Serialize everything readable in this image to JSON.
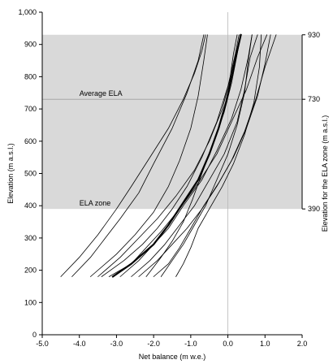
{
  "chart_data": {
    "type": "line",
    "xlabel": "Net balance (m w.e.)",
    "ylabel": "Elevation (m a.s.l.)",
    "y2label": "Elevation for the ELA zone (m a.s.l.)",
    "xlim": [
      -5.0,
      2.0
    ],
    "ylim": [
      0,
      1000
    ],
    "x_ticks": [
      "-5.0",
      "-4.0",
      "-3.0",
      "-2.0",
      "-1.0",
      "0.0",
      "1.0",
      "2.0"
    ],
    "y_ticks": [
      "0",
      "100",
      "200",
      "300",
      "400",
      "500",
      "600",
      "700",
      "800",
      "900",
      "1,000"
    ],
    "y2_ticks": [
      {
        "value": 390,
        "label": "390"
      },
      {
        "value": 730,
        "label": "730"
      },
      {
        "value": 930,
        "label": "930"
      }
    ],
    "ela_zone": {
      "min": 390,
      "max": 930,
      "label": "ELA zone",
      "fill": "#d9d9d9"
    },
    "average_ela": {
      "value": 730,
      "label": "Average ELA"
    },
    "zero_line": 0.0,
    "series": [
      {
        "bold": true,
        "x": [
          -3.1,
          -2.6,
          -2.0,
          -1.6,
          -1.2,
          -0.8,
          -0.5,
          -0.25,
          -0.05,
          0.1,
          0.25,
          0.35
        ],
        "y": [
          180,
          220,
          280,
          340,
          410,
          480,
          560,
          640,
          720,
          800,
          880,
          930
        ]
      },
      {
        "bold": false,
        "x": [
          -4.5,
          -4.0,
          -3.5,
          -3.0,
          -2.6,
          -2.1,
          -1.6,
          -1.2,
          -0.9,
          -0.7,
          -0.6
        ],
        "y": [
          180,
          240,
          310,
          390,
          460,
          550,
          640,
          730,
          810,
          880,
          930
        ]
      },
      {
        "bold": false,
        "x": [
          -4.2,
          -3.7,
          -3.3,
          -2.9,
          -2.4,
          -2.0,
          -1.5,
          -1.1,
          -0.8,
          -0.65
        ],
        "y": [
          180,
          240,
          300,
          360,
          440,
          530,
          640,
          750,
          850,
          930
        ]
      },
      {
        "bold": false,
        "x": [
          -3.7,
          -3.0,
          -2.5,
          -2.0,
          -1.6,
          -1.3,
          -1.0,
          -0.8,
          -0.65,
          -0.55
        ],
        "y": [
          180,
          250,
          310,
          380,
          460,
          540,
          640,
          740,
          850,
          930
        ]
      },
      {
        "bold": false,
        "x": [
          -3.4,
          -2.8,
          -2.3,
          -1.9,
          -1.5,
          -1.1,
          -0.7,
          -0.3,
          0.0,
          0.2,
          0.3
        ],
        "y": [
          180,
          230,
          280,
          330,
          390,
          460,
          550,
          660,
          770,
          870,
          930
        ]
      },
      {
        "bold": false,
        "x": [
          -3.2,
          -2.6,
          -2.2,
          -1.8,
          -1.3,
          -0.8,
          -0.3,
          0.1,
          0.5,
          0.8,
          1.05
        ],
        "y": [
          180,
          220,
          270,
          320,
          390,
          470,
          560,
          660,
          760,
          860,
          930
        ]
      },
      {
        "bold": false,
        "x": [
          -2.9,
          -2.4,
          -2.0,
          -1.6,
          -1.2,
          -0.7,
          -0.3,
          0.1,
          0.35,
          0.55,
          0.65
        ],
        "y": [
          180,
          230,
          280,
          330,
          400,
          480,
          570,
          670,
          760,
          860,
          930
        ]
      },
      {
        "bold": false,
        "x": [
          -2.6,
          -2.1,
          -1.7,
          -1.3,
          -0.9,
          -0.5,
          -0.1,
          0.25,
          0.45,
          0.6,
          0.8
        ],
        "y": [
          180,
          230,
          280,
          340,
          400,
          480,
          560,
          660,
          760,
          860,
          930
        ]
      },
      {
        "bold": false,
        "x": [
          -2.2,
          -1.8,
          -1.5,
          -1.2,
          -0.95,
          -0.7,
          -0.4,
          -0.1,
          0.1,
          0.25,
          0.35
        ],
        "y": [
          180,
          240,
          290,
          350,
          420,
          500,
          590,
          690,
          780,
          870,
          930
        ]
      },
      {
        "bold": false,
        "x": [
          -1.8,
          -1.5,
          -1.2,
          -0.9,
          -0.6,
          -0.3,
          0.0,
          0.25,
          0.45,
          0.55,
          0.65
        ],
        "y": [
          180,
          230,
          280,
          340,
          400,
          480,
          560,
          650,
          750,
          850,
          930
        ]
      },
      {
        "bold": false,
        "x": [
          -1.4,
          -1.2,
          -1.0,
          -0.8,
          -0.5,
          -0.15,
          0.15,
          0.45,
          0.7,
          0.85,
          0.9
        ],
        "y": [
          180,
          220,
          270,
          330,
          390,
          460,
          530,
          620,
          720,
          830,
          930
        ]
      },
      {
        "bold": false,
        "x": [
          -2.4,
          -1.9,
          -1.5,
          -1.1,
          -0.7,
          -0.3,
          0.1,
          0.45,
          0.75,
          1.0,
          1.3
        ],
        "y": [
          180,
          230,
          280,
          330,
          390,
          460,
          540,
          630,
          730,
          830,
          930
        ]
      },
      {
        "bold": false,
        "x": [
          -3.5,
          -2.9,
          -2.4,
          -1.9,
          -1.4,
          -0.9,
          -0.5,
          -0.15,
          0.05,
          0.15,
          0.25
        ],
        "y": [
          180,
          240,
          300,
          360,
          430,
          510,
          600,
          700,
          790,
          870,
          930
        ]
      },
      {
        "bold": false,
        "x": [
          -2.0,
          -1.6,
          -1.3,
          -1.0,
          -0.65,
          -0.25,
          0.15,
          0.5,
          0.8,
          1.0,
          1.15
        ],
        "y": [
          180,
          220,
          270,
          330,
          400,
          470,
          550,
          640,
          740,
          840,
          930
        ]
      }
    ]
  }
}
